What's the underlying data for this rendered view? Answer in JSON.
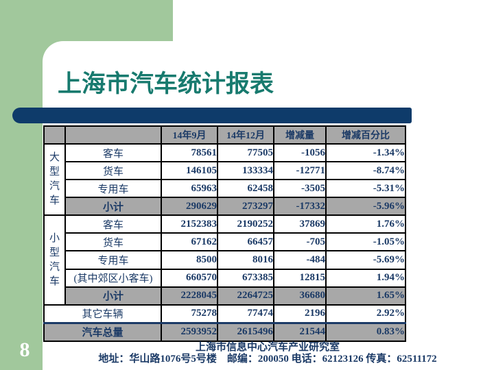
{
  "page_number": "8",
  "title": "上海市汽车统计报表",
  "colors": {
    "accent_green": "#a1c89c",
    "title_bar_navy": "#0e3b6a",
    "title_teal": "#177a6e",
    "table_text_navy": "#1b3a66",
    "header_row_gray": "#a8a8a8"
  },
  "table": {
    "column_headers": [
      "14年9月",
      "14年12月",
      "增减量",
      "增减百分比"
    ],
    "rows": [
      {
        "group": "大型汽车",
        "group_span": 4,
        "label": "客车",
        "kind": "data",
        "values": [
          "78561",
          "77505",
          "-1056",
          "-1.34%"
        ]
      },
      {
        "label": "货车",
        "kind": "data",
        "values": [
          "146105",
          "133334",
          "-12771",
          "-8.74%"
        ]
      },
      {
        "label": "专用车",
        "kind": "data",
        "values": [
          "65963",
          "62458",
          "-3505",
          "-5.31%"
        ]
      },
      {
        "label": "小计",
        "kind": "subtotal",
        "values": [
          "290629",
          "273297",
          "-17332",
          "-5.96%"
        ]
      },
      {
        "group": "小型汽车",
        "group_span": 5,
        "label": "客车",
        "kind": "data",
        "values": [
          "2152383",
          "2190252",
          "37869",
          "1.76%"
        ]
      },
      {
        "label": "货车",
        "kind": "data",
        "values": [
          "67162",
          "66457",
          "-705",
          "-1.05%"
        ]
      },
      {
        "label": "专用车",
        "kind": "data",
        "values": [
          "8500",
          "8016",
          "-484",
          "-5.69%"
        ]
      },
      {
        "label": "(其中郊区小客车)",
        "kind": "data",
        "values": [
          "660570",
          "673385",
          "12815",
          "1.94%"
        ]
      },
      {
        "label": "小计",
        "kind": "subtotal",
        "values": [
          "2228045",
          "2264725",
          "36680",
          "1.65%"
        ]
      },
      {
        "label": "其它车辆",
        "kind": "data",
        "span_left": true,
        "values": [
          "75278",
          "77474",
          "2196",
          "2.92%"
        ]
      },
      {
        "label": "汽车总量",
        "kind": "total",
        "span_left": true,
        "values": [
          "2593952",
          "2615496",
          "21544",
          "0.83%"
        ]
      }
    ]
  },
  "footer": {
    "line1": "上海市信息中心汽车产业研究室",
    "line2": "地址：华山路1076号5号楼　邮编：200050 电话：62123126 传真：62511172"
  }
}
